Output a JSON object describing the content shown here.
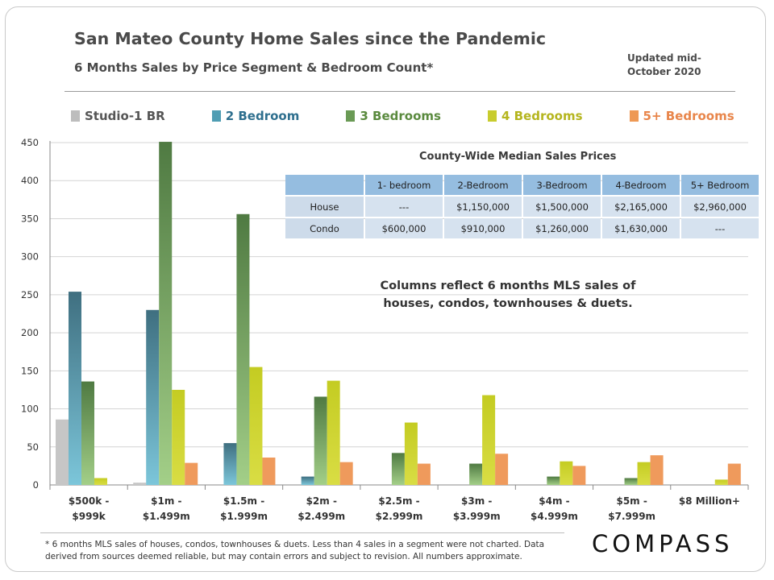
{
  "header": {
    "title": "San Mateo County Home Sales since the Pandemic",
    "subtitle": "6 Months Sales by Price Segment & Bedroom Count*",
    "updated": "Updated mid-October 2020"
  },
  "legend": [
    {
      "label": "Studio-1 BR",
      "color": "#bdbdbd",
      "text_color": "#555555"
    },
    {
      "label": "2 Bedroom",
      "color": "#4f9db3",
      "text_color": "#2e6f8e"
    },
    {
      "label": "3 Bedrooms",
      "color": "#6a9a55",
      "text_color": "#5a8a3e"
    },
    {
      "label": "4 Bedrooms",
      "color": "#c8cc2e",
      "text_color": "#b5b51e"
    },
    {
      "label": "5+ Bedrooms",
      "color": "#ee9955",
      "text_color": "#e8854a"
    }
  ],
  "table": {
    "title": "County-Wide  Median Sales Prices",
    "headers": [
      "",
      "1- bedroom",
      "2-Bedroom",
      "3-Bedroom",
      "4-Bedroom",
      "5+ Bedroom"
    ],
    "rows": [
      [
        "House",
        "---",
        "$1,150,000",
        "$1,500,000",
        "$2,165,000",
        "$2,960,000"
      ],
      [
        "Condo",
        "$600,000",
        "$910,000",
        "$1,260,000",
        "$1,630,000",
        "---"
      ]
    ]
  },
  "note": "Columns reflect 6 months MLS sales of houses, condos, townhouses & duets.",
  "footnote": "* 6 months MLS sales of houses, condos, townhouses & duets. Less than 4 sales in a segment were not charted. Data derived from sources deemed reliable, but may contain errors and subject to revision. All numbers approximate.",
  "logo": "COMPASS",
  "chart_data": {
    "type": "bar",
    "categories": [
      [
        "$500k -",
        "$999k"
      ],
      [
        "$1m -",
        "$1.499m"
      ],
      [
        "$1.5m -",
        "$1.999m"
      ],
      [
        "$2m -",
        "$2.499m"
      ],
      [
        "$2.5m -",
        "$2.999m"
      ],
      [
        "$3m -",
        "$3.999m"
      ],
      [
        "$4m -",
        "$4.999m"
      ],
      [
        "$5m -",
        "$7.999m"
      ],
      [
        "$8 Million+"
      ]
    ],
    "series": [
      {
        "name": "Studio-1 BR",
        "values": [
          86,
          3,
          0,
          0,
          0,
          0,
          0,
          0,
          0
        ],
        "color_top": "#c6c6c6",
        "color_bottom": "#c6c6c6"
      },
      {
        "name": "2 Bedroom",
        "values": [
          254,
          230,
          55,
          11,
          0,
          0,
          0,
          0,
          0
        ],
        "color_top": "#3f6f80",
        "color_bottom": "#7cc6da"
      },
      {
        "name": "3 Bedrooms",
        "values": [
          136,
          451,
          356,
          116,
          42,
          28,
          11,
          9,
          0
        ],
        "color_top": "#4f7a42",
        "color_bottom": "#a3cf88"
      },
      {
        "name": "4 Bedrooms",
        "values": [
          9,
          125,
          155,
          137,
          82,
          118,
          31,
          30,
          7
        ],
        "color_top": "#c4cc22",
        "color_bottom": "#d9dd44"
      },
      {
        "name": "5+ Bedrooms",
        "values": [
          0,
          29,
          36,
          30,
          28,
          41,
          25,
          39,
          28
        ],
        "color_top": "#ef9a5c",
        "color_bottom": "#ef9a5c"
      }
    ],
    "yticks": [
      0,
      50,
      100,
      150,
      200,
      250,
      300,
      350,
      400,
      450
    ],
    "ylim": [
      0,
      450
    ],
    "grid": true
  }
}
